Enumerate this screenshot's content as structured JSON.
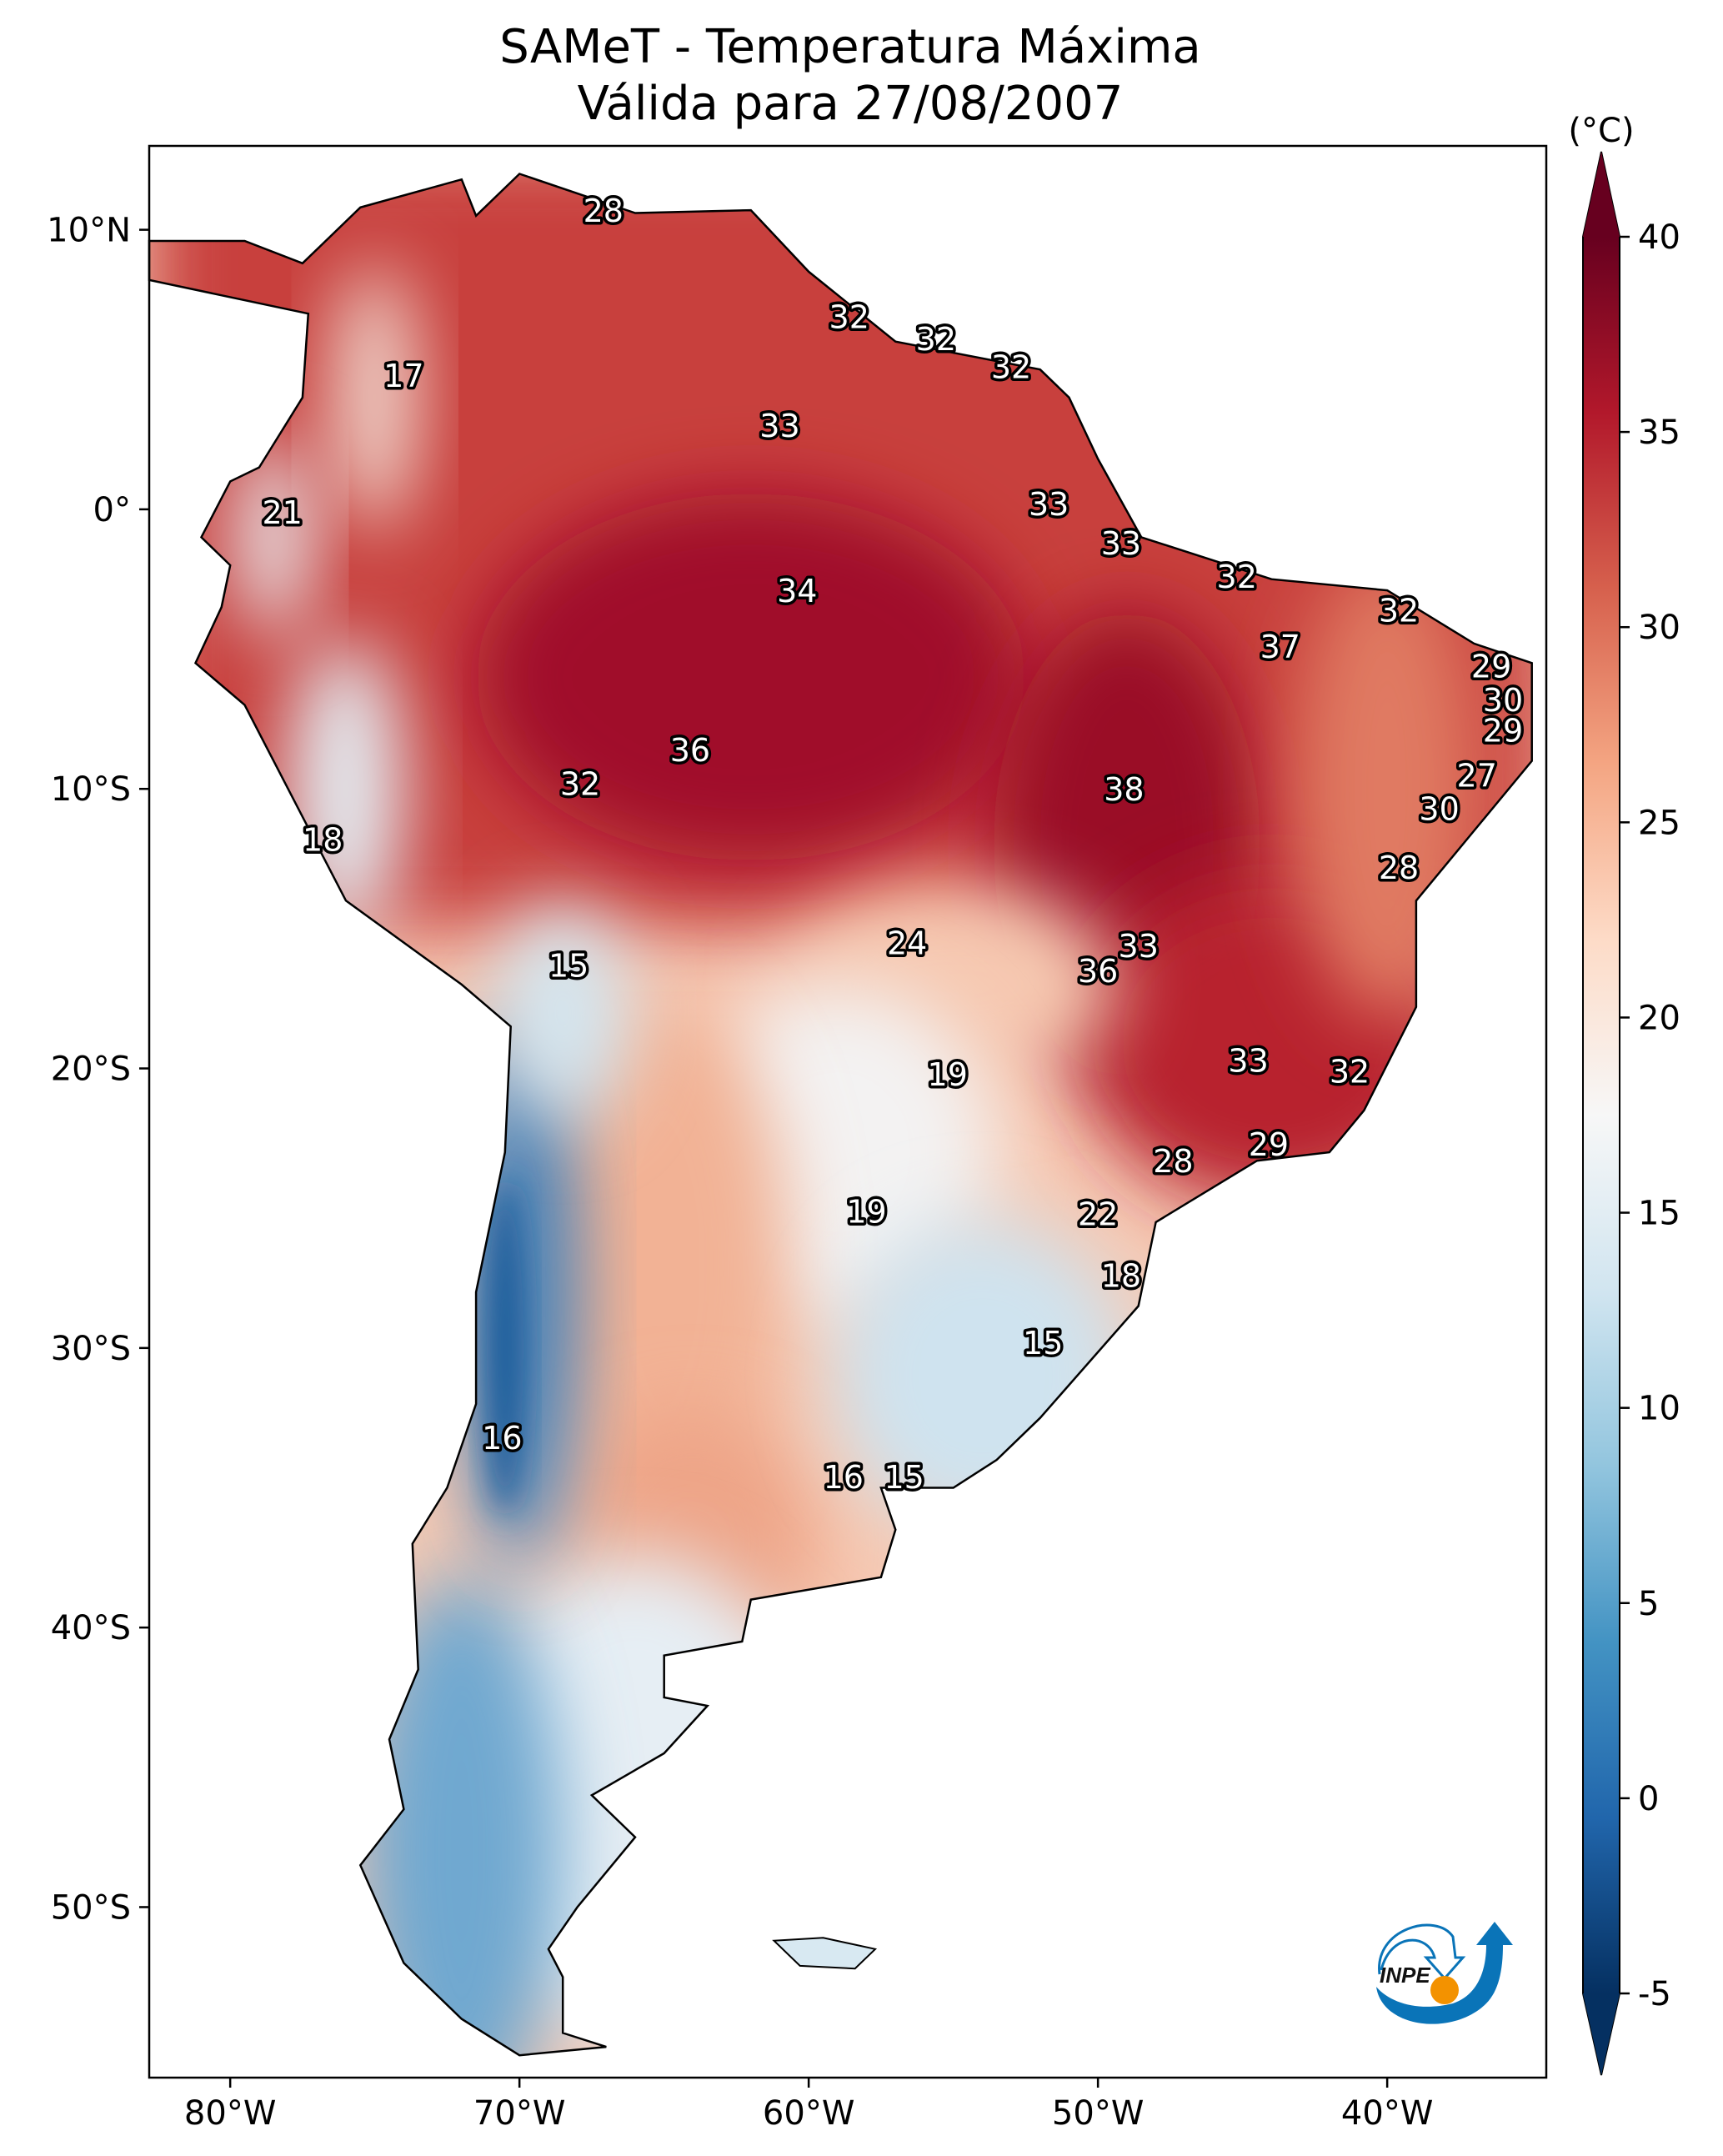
{
  "title": "SAMeT - Temperatura Máxima",
  "subtitle": "Válida para 27/08/2007",
  "colorbar": {
    "unit_label": "(°C)",
    "min": -5,
    "max": 40,
    "ticks": [
      "-5",
      "0",
      "5",
      "10",
      "15",
      "20",
      "25",
      "30",
      "35",
      "40"
    ],
    "colormap": [
      "#053061",
      "#2166ac",
      "#4393c3",
      "#92c5de",
      "#d1e5f0",
      "#f7f7f7",
      "#fddbc7",
      "#f4a582",
      "#d6604d",
      "#b2182b",
      "#67001f"
    ]
  },
  "axes": {
    "lon_ticks": [
      {
        "value": -80,
        "label": "80°W"
      },
      {
        "value": -70,
        "label": "70°W"
      },
      {
        "value": -60,
        "label": "60°W"
      },
      {
        "value": -50,
        "label": "50°W"
      },
      {
        "value": -40,
        "label": "40°W"
      }
    ],
    "lat_ticks": [
      {
        "value": 10,
        "label": "10°N"
      },
      {
        "value": 0,
        "label": "0°"
      },
      {
        "value": -10,
        "label": "10°S"
      },
      {
        "value": -20,
        "label": "20°S"
      },
      {
        "value": -30,
        "label": "30°S"
      },
      {
        "value": -40,
        "label": "40°S"
      },
      {
        "value": -50,
        "label": "50°S"
      }
    ],
    "lon_range": [
      -82.8,
      -34.5
    ],
    "lat_range": [
      -56.1,
      13.0
    ]
  },
  "station_labels": [
    {
      "text": "28",
      "lon": -67.1,
      "lat": 10.6
    },
    {
      "text": "32",
      "lon": -58.6,
      "lat": 6.8
    },
    {
      "text": "32",
      "lon": -55.6,
      "lat": 6.0
    },
    {
      "text": "32",
      "lon": -53.0,
      "lat": 5.0
    },
    {
      "text": "17",
      "lon": -74.0,
      "lat": 4.7
    },
    {
      "text": "33",
      "lon": -61.0,
      "lat": 2.9
    },
    {
      "text": "21",
      "lon": -78.2,
      "lat": -0.2
    },
    {
      "text": "33",
      "lon": -51.7,
      "lat": 0.1
    },
    {
      "text": "33",
      "lon": -49.2,
      "lat": -1.3
    },
    {
      "text": "32",
      "lon": -45.2,
      "lat": -2.5
    },
    {
      "text": "34",
      "lon": -60.4,
      "lat": -3.0
    },
    {
      "text": "32",
      "lon": -39.6,
      "lat": -3.7
    },
    {
      "text": "37",
      "lon": -43.7,
      "lat": -5.0
    },
    {
      "text": "29",
      "lon": -36.4,
      "lat": -5.7
    },
    {
      "text": "30",
      "lon": -36.0,
      "lat": -6.9
    },
    {
      "text": "29",
      "lon": -36.0,
      "lat": -8.0
    },
    {
      "text": "36",
      "lon": -64.1,
      "lat": -8.7
    },
    {
      "text": "27",
      "lon": -36.9,
      "lat": -9.6
    },
    {
      "text": "32",
      "lon": -67.9,
      "lat": -9.9
    },
    {
      "text": "38",
      "lon": -49.1,
      "lat": -10.1
    },
    {
      "text": "30",
      "lon": -38.2,
      "lat": -10.8
    },
    {
      "text": "18",
      "lon": -76.8,
      "lat": -11.9
    },
    {
      "text": "28",
      "lon": -39.6,
      "lat": -12.9
    },
    {
      "text": "24",
      "lon": -56.6,
      "lat": -15.6
    },
    {
      "text": "33",
      "lon": -48.6,
      "lat": -15.7
    },
    {
      "text": "15",
      "lon": -68.3,
      "lat": -16.4
    },
    {
      "text": "36",
      "lon": -50.0,
      "lat": -16.6
    },
    {
      "text": "33",
      "lon": -44.8,
      "lat": -19.8
    },
    {
      "text": "19",
      "lon": -55.2,
      "lat": -20.3
    },
    {
      "text": "32",
      "lon": -41.3,
      "lat": -20.2
    },
    {
      "text": "29",
      "lon": -44.1,
      "lat": -22.8
    },
    {
      "text": "28",
      "lon": -47.4,
      "lat": -23.4
    },
    {
      "text": "22",
      "lon": -50.0,
      "lat": -25.3
    },
    {
      "text": "19",
      "lon": -58.0,
      "lat": -25.2
    },
    {
      "text": "18",
      "lon": -49.2,
      "lat": -27.5
    },
    {
      "text": "15",
      "lon": -51.9,
      "lat": -29.9
    },
    {
      "text": "16",
      "lon": -70.6,
      "lat": -33.3
    },
    {
      "text": "16",
      "lon": -58.8,
      "lat": -34.7
    },
    {
      "text": "15",
      "lon": -56.7,
      "lat": -34.7
    }
  ],
  "logo": {
    "text": "INPE",
    "colors": {
      "blue": "#0a74b8",
      "orange": "#f39200"
    }
  }
}
